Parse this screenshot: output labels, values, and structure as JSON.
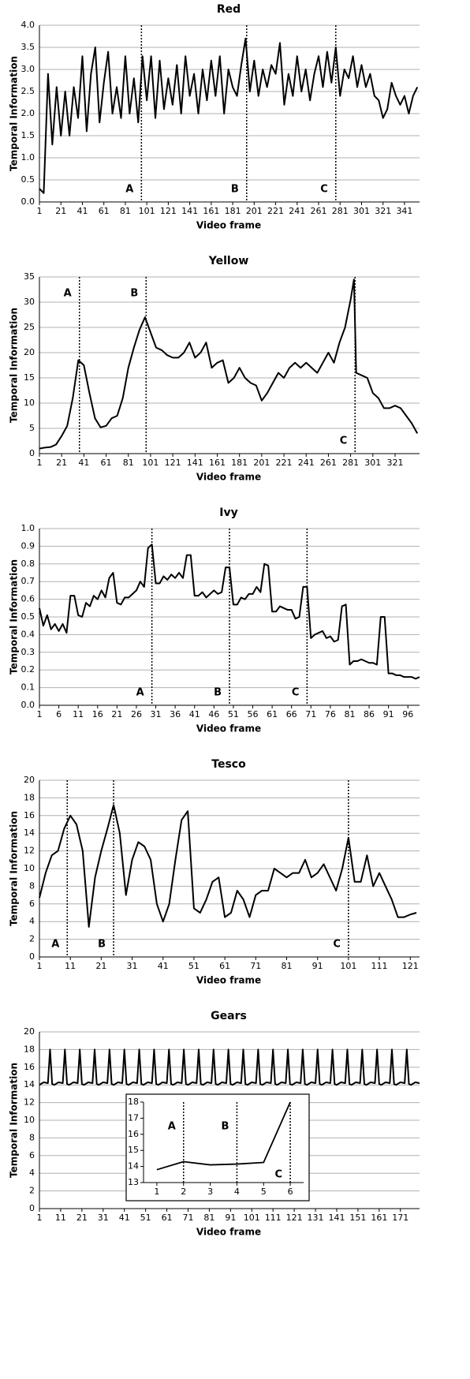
{
  "chart_data": [
    {
      "type": "line",
      "title": "Red",
      "x_label": "Video frame",
      "y_label": "Temporal Information",
      "color": "#000000",
      "grid": true,
      "xlim": [
        1,
        355
      ],
      "xticks": [
        1,
        21,
        41,
        61,
        81,
        101,
        121,
        141,
        161,
        181,
        201,
        221,
        241,
        261,
        281,
        301,
        321,
        341
      ],
      "ylim": [
        0,
        4
      ],
      "yticks": [
        {
          "value": 0,
          "label": "0.0"
        },
        0.5,
        {
          "value": 1,
          "label": "1.0"
        },
        1.5,
        {
          "value": 2,
          "label": "2.0"
        },
        2.5,
        {
          "value": 3,
          "label": "3.0"
        },
        3.5,
        {
          "value": 4,
          "label": "4.0"
        }
      ],
      "markers": [
        {
          "label": "A",
          "x": 96
        },
        {
          "label": "B",
          "x": 194
        },
        {
          "label": "C",
          "x": 277
        }
      ],
      "x": [
        1,
        5,
        9,
        13,
        17,
        21,
        25,
        29,
        33,
        37,
        41,
        45,
        49,
        53,
        57,
        61,
        65,
        69,
        73,
        77,
        81,
        85,
        89,
        93,
        97,
        101,
        105,
        109,
        113,
        117,
        121,
        125,
        129,
        133,
        137,
        141,
        145,
        149,
        153,
        157,
        161,
        165,
        169,
        173,
        177,
        181,
        185,
        189,
        193,
        197,
        201,
        205,
        209,
        213,
        217,
        221,
        225,
        229,
        233,
        237,
        241,
        245,
        249,
        253,
        257,
        261,
        265,
        269,
        273,
        277,
        281,
        285,
        289,
        293,
        297,
        301,
        305,
        309,
        313,
        317,
        321,
        325,
        329,
        333,
        337,
        341,
        345,
        349,
        353
      ],
      "values": [
        0.3,
        0.2,
        2.9,
        1.3,
        2.6,
        1.5,
        2.5,
        1.5,
        2.6,
        1.9,
        3.3,
        1.6,
        2.9,
        3.5,
        1.8,
        2.7,
        3.4,
        2.0,
        2.6,
        1.9,
        3.3,
        2.0,
        2.8,
        1.8,
        3.3,
        2.3,
        3.3,
        1.9,
        3.2,
        2.1,
        2.8,
        2.2,
        3.1,
        2.0,
        3.3,
        2.4,
        2.9,
        2.0,
        3.0,
        2.3,
        3.2,
        2.4,
        3.3,
        2.0,
        3.0,
        2.6,
        2.4,
        3.1,
        3.7,
        2.5,
        3.2,
        2.4,
        3.0,
        2.6,
        3.1,
        2.9,
        3.6,
        2.2,
        2.9,
        2.4,
        3.3,
        2.5,
        3.0,
        2.3,
        2.9,
        3.3,
        2.6,
        3.4,
        2.7,
        3.5,
        2.4,
        3.0,
        2.8,
        3.3,
        2.6,
        3.1,
        2.6,
        2.9,
        2.4,
        2.3,
        1.9,
        2.1,
        2.7,
        2.4,
        2.2,
        2.4,
        2.0,
        2.4,
        2.6
      ]
    },
    {
      "type": "line",
      "title": "Yellow",
      "x_label": "Video frame",
      "y_label": "Temporal Information",
      "color": "#000000",
      "grid": true,
      "xlim": [
        1,
        343
      ],
      "xticks": [
        1,
        21,
        41,
        61,
        81,
        101,
        121,
        141,
        161,
        181,
        201,
        221,
        241,
        261,
        281,
        301,
        321
      ],
      "ylim": [
        0,
        35
      ],
      "yticks": [
        0,
        5,
        10,
        15,
        20,
        25,
        30,
        35
      ],
      "markers": [
        {
          "label": "A",
          "x": 37
        },
        {
          "label": "B",
          "x": 97
        },
        {
          "label": "C",
          "x": 285
        }
      ],
      "x": [
        1,
        6,
        11,
        16,
        21,
        26,
        31,
        36,
        41,
        46,
        51,
        56,
        61,
        66,
        71,
        76,
        81,
        86,
        91,
        96,
        101,
        106,
        111,
        116,
        121,
        126,
        131,
        136,
        141,
        146,
        151,
        156,
        161,
        166,
        171,
        176,
        181,
        186,
        191,
        196,
        201,
        206,
        211,
        216,
        221,
        226,
        231,
        236,
        241,
        246,
        251,
        256,
        261,
        266,
        271,
        276,
        281,
        284,
        286,
        291,
        296,
        301,
        306,
        311,
        316,
        321,
        326,
        331,
        336,
        341
      ],
      "values": [
        1.0,
        1.2,
        1.3,
        1.8,
        3.5,
        5.5,
        11,
        18.5,
        17.5,
        12,
        7,
        5.2,
        5.5,
        7,
        7.5,
        11,
        17,
        21,
        24.5,
        27,
        24,
        21,
        20.5,
        19.5,
        19,
        19,
        20,
        22,
        19,
        20,
        22,
        17,
        18,
        18.5,
        14,
        15,
        17,
        15,
        14,
        13.5,
        10.5,
        12,
        14,
        16,
        15,
        17,
        18,
        17,
        18,
        17,
        16,
        18,
        20,
        18,
        22,
        25,
        30.5,
        34.5,
        16,
        15.5,
        15,
        12,
        11,
        9,
        9,
        9.5,
        9,
        7.5,
        6,
        4
      ]
    },
    {
      "type": "line",
      "title": "Ivy",
      "x_label": "Video frame",
      "y_label": "Temporal Information",
      "color": "#000000",
      "grid": true,
      "xlim": [
        1,
        99
      ],
      "xticks": [
        1,
        6,
        11,
        16,
        21,
        26,
        31,
        36,
        41,
        46,
        51,
        56,
        61,
        66,
        71,
        76,
        81,
        86,
        91,
        96
      ],
      "ylim": [
        0,
        1
      ],
      "yticks": [
        {
          "value": 0,
          "label": "0.0"
        },
        0.1,
        0.2,
        0.3,
        0.4,
        0.5,
        0.6,
        0.7,
        0.8,
        0.9,
        {
          "value": 1,
          "label": "1.0"
        }
      ],
      "markers": [
        {
          "label": "A",
          "x": 30
        },
        {
          "label": "B",
          "x": 50
        },
        {
          "label": "C",
          "x": 70
        }
      ],
      "x": [
        1,
        2,
        3,
        4,
        5,
        6,
        7,
        8,
        9,
        10,
        11,
        12,
        13,
        14,
        15,
        16,
        17,
        18,
        19,
        20,
        21,
        22,
        23,
        24,
        25,
        26,
        27,
        28,
        29,
        30,
        31,
        32,
        33,
        34,
        35,
        36,
        37,
        38,
        39,
        40,
        41,
        42,
        43,
        44,
        45,
        46,
        47,
        48,
        49,
        50,
        51,
        52,
        53,
        54,
        55,
        56,
        57,
        58,
        59,
        60,
        61,
        62,
        63,
        64,
        65,
        66,
        67,
        68,
        69,
        70,
        71,
        72,
        73,
        74,
        75,
        76,
        77,
        78,
        79,
        80,
        81,
        82,
        83,
        84,
        85,
        86,
        87,
        88,
        89,
        90,
        91,
        92,
        93,
        94,
        95,
        96,
        97,
        98,
        99
      ],
      "values": [
        0.55,
        0.45,
        0.51,
        0.43,
        0.46,
        0.42,
        0.46,
        0.41,
        0.62,
        0.62,
        0.51,
        0.5,
        0.58,
        0.56,
        0.62,
        0.6,
        0.65,
        0.61,
        0.72,
        0.75,
        0.58,
        0.57,
        0.61,
        0.61,
        0.63,
        0.65,
        0.7,
        0.67,
        0.89,
        0.91,
        0.69,
        0.69,
        0.73,
        0.71,
        0.74,
        0.72,
        0.75,
        0.72,
        0.85,
        0.85,
        0.62,
        0.62,
        0.64,
        0.61,
        0.63,
        0.65,
        0.63,
        0.64,
        0.78,
        0.78,
        0.57,
        0.57,
        0.61,
        0.6,
        0.63,
        0.63,
        0.67,
        0.64,
        0.8,
        0.79,
        0.53,
        0.53,
        0.56,
        0.55,
        0.54,
        0.54,
        0.49,
        0.5,
        0.67,
        0.67,
        0.38,
        0.4,
        0.41,
        0.42,
        0.38,
        0.39,
        0.36,
        0.37,
        0.56,
        0.57,
        0.23,
        0.25,
        0.25,
        0.26,
        0.25,
        0.24,
        0.24,
        0.23,
        0.5,
        0.5,
        0.18,
        0.18,
        0.17,
        0.17,
        0.16,
        0.16,
        0.16,
        0.15,
        0.16
      ]
    },
    {
      "type": "line",
      "title": "Tesco",
      "x_label": "Video frame",
      "y_label": "Temporal Information",
      "color": "#000000",
      "grid": true,
      "xlim": [
        1,
        124
      ],
      "xticks": [
        1,
        11,
        21,
        31,
        41,
        51,
        61,
        71,
        81,
        91,
        101,
        111,
        121
      ],
      "ylim": [
        0,
        20
      ],
      "yticks": [
        0,
        2,
        4,
        6,
        8,
        10,
        12,
        14,
        16,
        18,
        20
      ],
      "markers": [
        {
          "label": "A",
          "x": 10
        },
        {
          "label": "B",
          "x": 25
        },
        {
          "label": "C",
          "x": 101
        }
      ],
      "x": [
        1,
        3,
        5,
        7,
        9,
        11,
        13,
        15,
        17,
        19,
        21,
        23,
        25,
        27,
        29,
        31,
        33,
        35,
        37,
        39,
        41,
        43,
        45,
        47,
        49,
        51,
        53,
        55,
        57,
        59,
        61,
        63,
        65,
        67,
        69,
        71,
        73,
        75,
        77,
        79,
        81,
        83,
        85,
        87,
        89,
        91,
        93,
        95,
        97,
        99,
        101,
        103,
        105,
        107,
        109,
        111,
        113,
        115,
        117,
        119,
        121,
        123
      ],
      "values": [
        6.7,
        9.5,
        11.5,
        12,
        14.5,
        16,
        15,
        12,
        3.4,
        9,
        12,
        14.5,
        17.2,
        14,
        7,
        11,
        13,
        12.5,
        11,
        6,
        4,
        6,
        11,
        15.5,
        16.5,
        5.5,
        5,
        6.5,
        8.5,
        9,
        4.5,
        5,
        7.5,
        6.5,
        4.5,
        7,
        7.5,
        7.5,
        10,
        9.5,
        9,
        9.5,
        9.5,
        11,
        9,
        9.5,
        10.5,
        9,
        7.5,
        10,
        13.5,
        8.5,
        8.5,
        11.5,
        8,
        9.5,
        8,
        6.5,
        4.5,
        4.5,
        4.8,
        5
      ]
    },
    {
      "type": "line",
      "title": "Gears",
      "x_label": "Video frame",
      "y_label": "Temporal Information",
      "color": "#000000",
      "grid": true,
      "xlim": [
        1,
        180
      ],
      "xticks": [
        1,
        11,
        21,
        31,
        41,
        51,
        61,
        71,
        81,
        91,
        101,
        111,
        121,
        131,
        141,
        151,
        161,
        171
      ],
      "ylim": [
        0,
        20
      ],
      "yticks": [
        0,
        2,
        4,
        6,
        8,
        10,
        12,
        14,
        16,
        18,
        20
      ],
      "markers": [],
      "x": [
        1,
        3,
        5,
        6,
        7,
        8,
        10,
        12,
        13,
        14,
        15,
        17,
        19,
        20,
        21,
        22,
        24,
        26,
        27,
        28,
        29,
        31,
        33,
        34,
        35,
        36,
        38,
        40,
        41,
        42,
        43,
        45,
        47,
        48,
        49,
        50,
        52,
        54,
        55,
        56,
        57,
        59,
        61,
        62,
        63,
        64,
        66,
        68,
        69,
        70,
        71,
        73,
        75,
        76,
        77,
        78,
        80,
        82,
        83,
        84,
        85,
        87,
        89,
        90,
        91,
        92,
        94,
        96,
        97,
        98,
        99,
        101,
        103,
        104,
        105,
        106,
        108,
        110,
        111,
        112,
        113,
        115,
        117,
        118,
        119,
        120,
        122,
        124,
        125,
        126,
        127,
        129,
        131,
        132,
        133,
        134,
        136,
        138,
        139,
        140,
        141,
        143,
        145,
        146,
        147,
        148,
        150,
        152,
        153,
        154,
        155,
        157,
        159,
        160,
        161,
        162,
        164,
        166,
        167,
        168,
        169,
        171,
        173,
        174,
        175,
        176,
        178,
        180
      ],
      "values": [
        14.0,
        14.3,
        14.2,
        18,
        14.1,
        14.0,
        14.3,
        14.2,
        18,
        14.1,
        14.0,
        14.3,
        14.2,
        18,
        14.1,
        14.0,
        14.3,
        14.2,
        18,
        14.1,
        14.0,
        14.3,
        14.2,
        18,
        14.1,
        14.0,
        14.3,
        14.2,
        18,
        14.1,
        14.0,
        14.3,
        14.2,
        18,
        14.1,
        14.0,
        14.3,
        14.2,
        18,
        14.1,
        14.0,
        14.3,
        14.2,
        18,
        14.1,
        14.0,
        14.3,
        14.2,
        18,
        14.1,
        14.0,
        14.3,
        14.2,
        18,
        14.1,
        14.0,
        14.3,
        14.2,
        18,
        14.1,
        14.0,
        14.3,
        14.2,
        18,
        14.1,
        14.0,
        14.3,
        14.2,
        18,
        14.1,
        14.0,
        14.3,
        14.2,
        18,
        14.1,
        14.0,
        14.3,
        14.2,
        18,
        14.1,
        14.0,
        14.3,
        14.2,
        18,
        14.1,
        14.0,
        14.3,
        14.2,
        18,
        14.1,
        14.0,
        14.3,
        14.2,
        18,
        14.1,
        14.0,
        14.3,
        14.2,
        18,
        14.1,
        14.0,
        14.3,
        14.2,
        18,
        14.1,
        14.0,
        14.3,
        14.2,
        18,
        14.1,
        14.0,
        14.3,
        14.2,
        18,
        14.1,
        14.0,
        14.3,
        14.2,
        18,
        14.1,
        14.0,
        14.3,
        14.2,
        18,
        14.1,
        14.0,
        14.3,
        14.2
      ],
      "inset": {
        "type": "line",
        "color": "#000000",
        "grid": false,
        "x": [
          1,
          2,
          3,
          4,
          5,
          6
        ],
        "xlim": [
          0.5,
          6.5
        ],
        "xticks": [
          1,
          2,
          3,
          4,
          5,
          6
        ],
        "ylim": [
          13,
          18
        ],
        "yticks": [
          13,
          14,
          15,
          16,
          17,
          18
        ],
        "markers": [
          {
            "label": "A",
            "x": 2
          },
          {
            "label": "B",
            "x": 4
          },
          {
            "label": "C",
            "x": 6
          }
        ],
        "values": [
          13.8,
          14.3,
          14.1,
          14.15,
          14.25,
          18
        ]
      }
    }
  ]
}
